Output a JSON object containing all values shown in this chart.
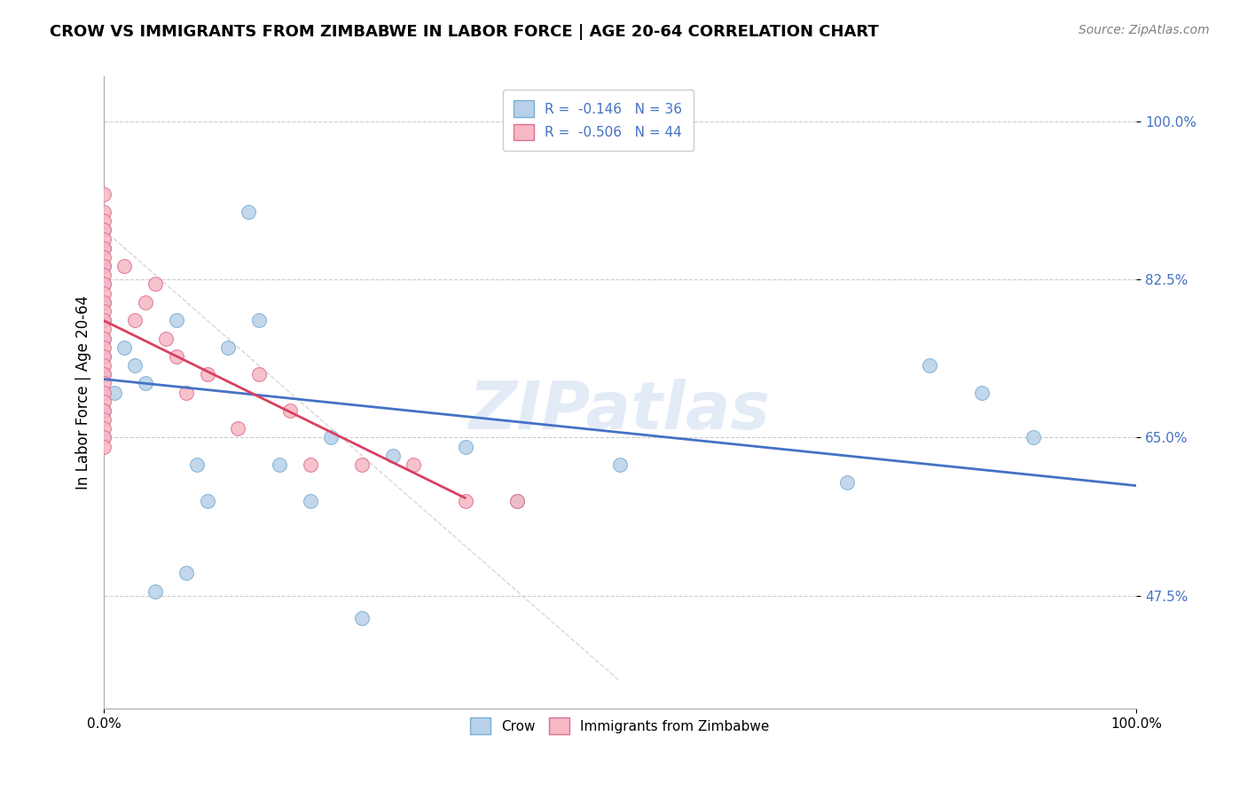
{
  "title": "CROW VS IMMIGRANTS FROM ZIMBABWE IN LABOR FORCE | AGE 20-64 CORRELATION CHART",
  "source": "Source: ZipAtlas.com",
  "ylabel": "In Labor Force | Age 20-64",
  "xlim": [
    0.0,
    1.0
  ],
  "ylim": [
    0.35,
    1.05
  ],
  "ytick_vals": [
    0.475,
    0.65,
    0.825,
    1.0
  ],
  "ytick_labels": [
    "47.5%",
    "65.0%",
    "82.5%",
    "100.0%"
  ],
  "xtick_vals": [
    0.0,
    1.0
  ],
  "xtick_labels": [
    "0.0%",
    "100.0%"
  ],
  "crow_color": "#b8d0e8",
  "crow_edge_color": "#7aafd4",
  "zimbabwe_color": "#f5b8c4",
  "zimbabwe_edge_color": "#e07090",
  "blue_line_color": "#4472c4",
  "pink_line_color": "#d94060",
  "tick_label_color": "#4472c4",
  "R_crow": -0.146,
  "N_crow": 36,
  "R_zimbabwe": -0.506,
  "N_zimbabwe": 44,
  "crow_x": [
    0.0,
    0.0,
    0.0,
    0.0,
    0.0,
    0.0,
    0.0,
    0.0,
    0.0,
    0.0,
    0.0,
    0.0,
    0.01,
    0.02,
    0.03,
    0.04,
    0.05,
    0.07,
    0.08,
    0.09,
    0.1,
    0.12,
    0.14,
    0.15,
    0.17,
    0.2,
    0.22,
    0.25,
    0.28,
    0.35,
    0.4,
    0.5,
    0.72,
    0.8,
    0.85,
    0.9
  ],
  "crow_y": [
    0.7,
    0.72,
    0.74,
    0.76,
    0.78,
    0.8,
    0.82,
    0.84,
    0.86,
    0.88,
    0.65,
    0.68,
    0.7,
    0.75,
    0.73,
    0.71,
    0.48,
    0.78,
    0.5,
    0.62,
    0.58,
    0.75,
    0.9,
    0.78,
    0.62,
    0.58,
    0.65,
    0.45,
    0.63,
    0.64,
    0.58,
    0.62,
    0.6,
    0.73,
    0.7,
    0.65
  ],
  "zimbabwe_x": [
    0.0,
    0.0,
    0.0,
    0.0,
    0.0,
    0.0,
    0.0,
    0.0,
    0.0,
    0.0,
    0.0,
    0.0,
    0.0,
    0.0,
    0.0,
    0.0,
    0.0,
    0.0,
    0.0,
    0.0,
    0.0,
    0.0,
    0.0,
    0.0,
    0.0,
    0.0,
    0.0,
    0.0,
    0.02,
    0.03,
    0.04,
    0.05,
    0.06,
    0.07,
    0.08,
    0.1,
    0.13,
    0.15,
    0.18,
    0.2,
    0.25,
    0.3,
    0.35,
    0.4
  ],
  "zimbabwe_y": [
    0.92,
    0.9,
    0.89,
    0.88,
    0.87,
    0.86,
    0.85,
    0.84,
    0.83,
    0.82,
    0.81,
    0.8,
    0.79,
    0.78,
    0.77,
    0.76,
    0.75,
    0.74,
    0.73,
    0.72,
    0.71,
    0.7,
    0.69,
    0.68,
    0.67,
    0.66,
    0.65,
    0.64,
    0.84,
    0.78,
    0.8,
    0.82,
    0.76,
    0.74,
    0.7,
    0.72,
    0.66,
    0.72,
    0.68,
    0.62,
    0.62,
    0.62,
    0.58,
    0.58
  ],
  "diag_line_x": [
    0.0,
    0.5
  ],
  "diag_line_y": [
    0.88,
    0.38
  ]
}
